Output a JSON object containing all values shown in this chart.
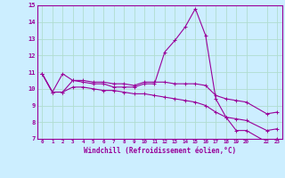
{
  "x": [
    0,
    1,
    2,
    3,
    4,
    5,
    6,
    7,
    8,
    9,
    10,
    11,
    12,
    13,
    14,
    15,
    16,
    17,
    18,
    19,
    20,
    22,
    23
  ],
  "y_main": [
    10.9,
    9.8,
    9.8,
    10.5,
    10.4,
    10.3,
    10.3,
    10.1,
    10.1,
    10.1,
    10.3,
    10.3,
    12.2,
    12.9,
    13.7,
    14.8,
    13.2,
    9.4,
    8.3,
    7.5,
    7.5,
    6.8,
    7.0
  ],
  "y_upper": [
    10.9,
    9.8,
    10.9,
    10.5,
    10.5,
    10.4,
    10.4,
    10.3,
    10.3,
    10.2,
    10.4,
    10.4,
    10.4,
    10.3,
    10.3,
    10.3,
    10.2,
    9.6,
    9.4,
    9.3,
    9.2,
    8.5,
    8.6
  ],
  "y_lower": [
    10.9,
    9.8,
    9.8,
    10.1,
    10.1,
    10.0,
    9.9,
    9.9,
    9.8,
    9.7,
    9.7,
    9.6,
    9.5,
    9.4,
    9.3,
    9.2,
    9.0,
    8.6,
    8.3,
    8.2,
    8.1,
    7.5,
    7.6
  ],
  "color": "#990099",
  "bg_color": "#cceeff",
  "grid_color": "#b0ddd0",
  "xlabel": "Windchill (Refroidissement éolien,°C)",
  "ylabel": "",
  "xlim": [
    -0.5,
    23.5
  ],
  "ylim": [
    7,
    15
  ],
  "yticks": [
    7,
    8,
    9,
    10,
    11,
    12,
    13,
    14,
    15
  ],
  "xticks": [
    0,
    1,
    2,
    3,
    4,
    5,
    6,
    7,
    8,
    9,
    10,
    11,
    12,
    13,
    14,
    15,
    16,
    17,
    18,
    19,
    20,
    22,
    23
  ]
}
